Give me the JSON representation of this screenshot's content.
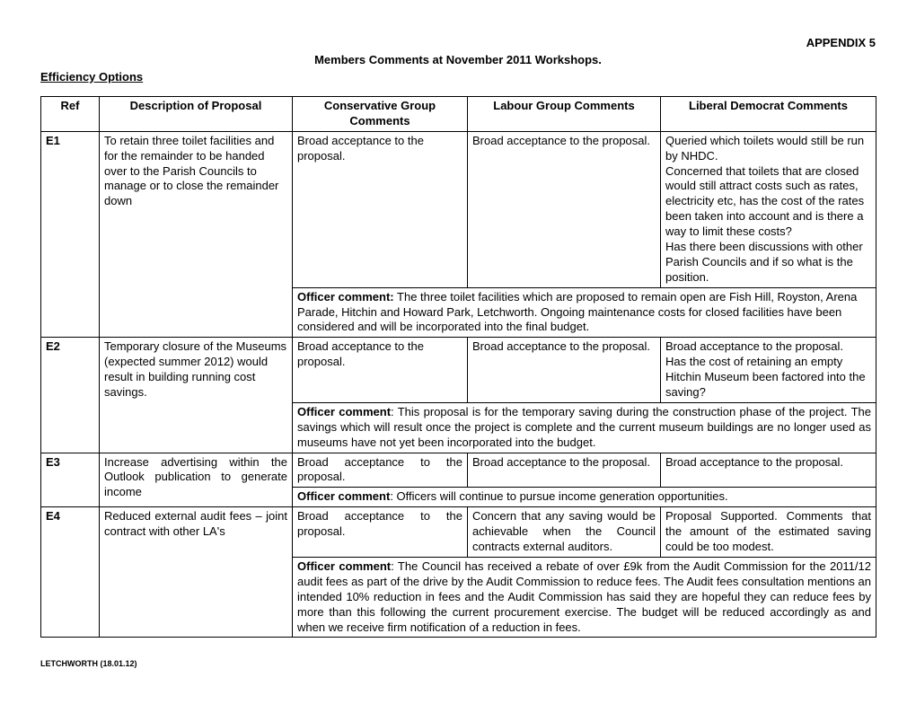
{
  "appendix": "APPENDIX 5",
  "title": "Members Comments at November 2011 Workshops.",
  "section": "Efficiency Options",
  "headers": {
    "ref": "Ref",
    "desc": "Description of Proposal",
    "cons": "Conservative Group Comments",
    "lab": "Labour Group Comments",
    "lib": "Liberal Democrat Comments"
  },
  "rows": {
    "e1": {
      "ref": "E1",
      "desc": "To retain three toilet facilities and for the remainder to be handed over to the Parish Councils to manage or to close the remainder down",
      "cons": "Broad acceptance to the proposal.",
      "lab": "Broad acceptance to the proposal.",
      "lib": "Queried which toilets would still be run by NHDC.\nConcerned that toilets that are closed would still attract costs such as rates, electricity etc, has the cost of the rates been taken into account and is there a way to limit these costs?\nHas there been discussions with other Parish Councils and if so what is the position.",
      "officer_label": "Officer comment:",
      "officer": "The three toilet facilities which are proposed to remain open are Fish Hill, Royston, Arena Parade, Hitchin and Howard Park, Letchworth.  Ongoing maintenance costs for closed facilities have been considered and will be incorporated into the final budget."
    },
    "e2": {
      "ref": "E2",
      "desc": "Temporary closure of the Museums (expected summer 2012) would result in building running cost savings.",
      "cons": "Broad acceptance to the proposal.",
      "lab": "Broad acceptance to the proposal.",
      "lib": "Broad acceptance to the proposal.\nHas the cost of retaining an empty Hitchin Museum been factored into the saving?",
      "officer_label": "Officer comment",
      "officer": ":   This proposal is for the temporary saving during the construction phase of the project. The savings which will result once the project is complete and the current museum buildings are no longer used as museums have not yet been incorporated into the budget."
    },
    "e3": {
      "ref": "E3",
      "desc": "Increase advertising within the Outlook publication to generate income",
      "cons": "Broad acceptance to the proposal.",
      "lab": "Broad acceptance to the proposal.",
      "lib": "Broad acceptance to the proposal.",
      "officer_label": "Officer comment",
      "officer": ":  Officers will continue to pursue income generation opportunities."
    },
    "e4": {
      "ref": "E4",
      "desc": "Reduced external audit fees – joint contract with other LA's",
      "cons": "Broad acceptance to the proposal.",
      "lab": "Concern that any saving would be achievable when the Council contracts external auditors.",
      "lib": "Proposal Supported. Comments that the amount of the estimated saving could be too modest.",
      "officer_label": "Officer comment",
      "officer": ":  The Council has received a rebate of over £9k from the Audit Commission for the 2011/12 audit fees as part of the drive by the Audit Commission to reduce fees.  The Audit fees consultation mentions an intended 10% reduction in fees and the Audit Commission has said they are hopeful they can reduce fees by more than this following the current procurement exercise.  The budget will be reduced accordingly as and when we receive firm notification of a reduction in fees."
    }
  },
  "footer": "LETCHWORTH (18.01.12)"
}
